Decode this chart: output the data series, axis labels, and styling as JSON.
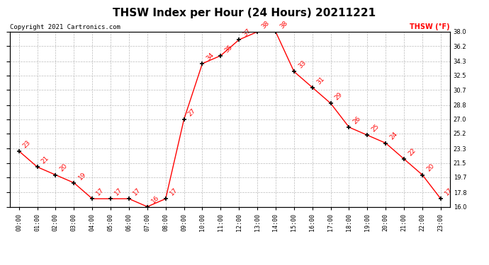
{
  "title": "THSW Index per Hour (24 Hours) 20211221",
  "copyright": "Copyright 2021 Cartronics.com",
  "legend_label": "THSW (°F)",
  "hours": [
    0,
    1,
    2,
    3,
    4,
    5,
    6,
    7,
    8,
    9,
    10,
    11,
    12,
    13,
    14,
    15,
    16,
    17,
    18,
    19,
    20,
    21,
    22,
    23
  ],
  "values": [
    23,
    21,
    20,
    19,
    17,
    17,
    17,
    16,
    17,
    27,
    34,
    35,
    37,
    38,
    38,
    33,
    31,
    29,
    26,
    25,
    24,
    22,
    20,
    17
  ],
  "ylim_min": 16.0,
  "ylim_max": 38.0,
  "yticks": [
    16.0,
    17.8,
    19.7,
    21.5,
    23.3,
    25.2,
    27.0,
    28.8,
    30.7,
    32.5,
    34.3,
    36.2,
    38.0
  ],
  "line_color": "red",
  "marker_color": "black",
  "annotation_color": "red",
  "background_color": "white",
  "grid_color": "#bbbbbb",
  "title_fontsize": 11,
  "tick_fontsize": 6,
  "annotation_fontsize": 6.5,
  "copyright_fontsize": 6.5,
  "legend_fontsize": 7
}
